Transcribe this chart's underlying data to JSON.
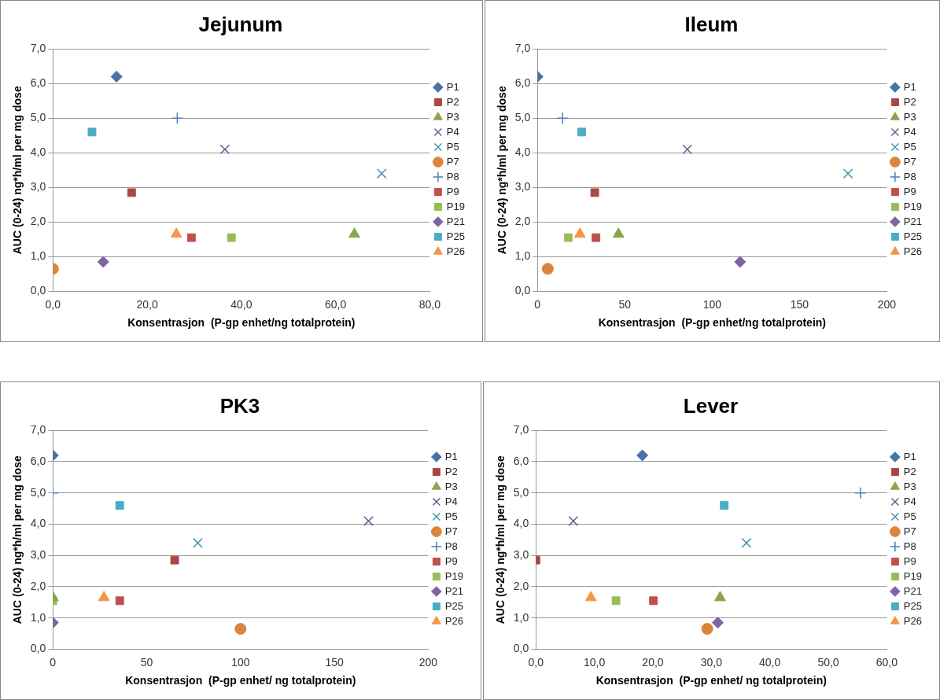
{
  "chart_data": [
    {
      "type": "scatter",
      "title": "Jejunum",
      "xlabel": "Konsentrasjon  (P-gp enhet/ng totalprotein)",
      "ylabel": "AUC (0-24) ng*h/ml per mg dose",
      "xlim": [
        0,
        80
      ],
      "xticks": [
        {
          "value": 0,
          "label": "0,0"
        },
        {
          "value": 20,
          "label": "20,0"
        },
        {
          "value": 40,
          "label": "40,0"
        },
        {
          "value": 60,
          "label": "60,0"
        },
        {
          "value": 80,
          "label": "80,0"
        }
      ],
      "ylim": [
        0,
        7
      ],
      "yticks": [
        {
          "value": 0,
          "label": "0,0"
        },
        {
          "value": 1,
          "label": "1,0"
        },
        {
          "value": 2,
          "label": "2,0"
        },
        {
          "value": 3,
          "label": "3,0"
        },
        {
          "value": 4,
          "label": "4,0"
        },
        {
          "value": 5,
          "label": "5,0"
        },
        {
          "value": 6,
          "label": "6,0"
        },
        {
          "value": 7,
          "label": "7,0"
        }
      ],
      "grid": "y",
      "legend": "right",
      "series": [
        {
          "name": "P1",
          "color": "#4572a7",
          "marker": "diamond",
          "x": [
            13.5
          ],
          "values": [
            6.2
          ]
        },
        {
          "name": "P2",
          "color": "#aa4643",
          "marker": "square",
          "x": [
            16.7
          ],
          "values": [
            2.85
          ]
        },
        {
          "name": "P3",
          "color": "#89a54e",
          "marker": "triangle",
          "x": [
            64
          ],
          "values": [
            1.65
          ]
        },
        {
          "name": "P4",
          "color": "#71588f",
          "marker": "cross",
          "x": [
            36.5
          ],
          "values": [
            4.1
          ]
        },
        {
          "name": "P5",
          "color": "#4198af",
          "marker": "cross",
          "x": [
            69.8
          ],
          "values": [
            3.4
          ]
        },
        {
          "name": "P7",
          "color": "#db843d",
          "marker": "circle",
          "x": [
            0
          ],
          "values": [
            0.65
          ]
        },
        {
          "name": "P8",
          "color": "#4a7ebb",
          "marker": "plus",
          "x": [
            26.4
          ],
          "values": [
            5.0
          ]
        },
        {
          "name": "P9",
          "color": "#c0504d",
          "marker": "square",
          "x": [
            29.4
          ],
          "values": [
            1.55
          ]
        },
        {
          "name": "P19",
          "color": "#9bbb59",
          "marker": "square",
          "x": [
            37.9
          ],
          "values": [
            1.55
          ]
        },
        {
          "name": "P21",
          "color": "#8064a2",
          "marker": "diamond",
          "x": [
            10.7
          ],
          "values": [
            0.85
          ]
        },
        {
          "name": "P25",
          "color": "#4bacc6",
          "marker": "square",
          "x": [
            8.3
          ],
          "values": [
            4.6
          ]
        },
        {
          "name": "P26",
          "color": "#f79646",
          "marker": "triangle",
          "x": [
            26.2
          ],
          "values": [
            1.65
          ]
        }
      ]
    },
    {
      "type": "scatter",
      "title": "Ileum",
      "xlabel": "Konsentrasjon  (P-gp enhet/ng totalprotein)",
      "ylabel": "AUC (0-24) ng*h/ml per mg dose",
      "xlim": [
        0,
        200
      ],
      "xticks": [
        0,
        50,
        100,
        150,
        200
      ],
      "ylim": [
        0,
        7
      ],
      "yticks": [
        {
          "value": 0,
          "label": "0,0"
        },
        {
          "value": 1,
          "label": "1,0"
        },
        {
          "value": 2,
          "label": "2,0"
        },
        {
          "value": 3,
          "label": "3,0"
        },
        {
          "value": 4,
          "label": "4,0"
        },
        {
          "value": 5,
          "label": "5,0"
        },
        {
          "value": 6,
          "label": "6,0"
        },
        {
          "value": 7,
          "label": "7,0"
        }
      ],
      "grid": "y",
      "legend": "right",
      "series": [
        {
          "name": "P1",
          "color": "#4572a7",
          "marker": "diamond",
          "x": [
            0
          ],
          "values": [
            6.2
          ]
        },
        {
          "name": "P2",
          "color": "#aa4643",
          "marker": "square",
          "x": [
            32.8
          ],
          "values": [
            2.85
          ]
        },
        {
          "name": "P3",
          "color": "#89a54e",
          "marker": "triangle",
          "x": [
            46.4
          ],
          "values": [
            1.65
          ]
        },
        {
          "name": "P4",
          "color": "#71588f",
          "marker": "cross",
          "x": [
            85.8
          ],
          "values": [
            4.1
          ]
        },
        {
          "name": "P5",
          "color": "#4198af",
          "marker": "cross",
          "x": [
            177.8
          ],
          "values": [
            3.4
          ]
        },
        {
          "name": "P7",
          "color": "#db843d",
          "marker": "circle",
          "x": [
            5.9
          ],
          "values": [
            0.65
          ]
        },
        {
          "name": "P8",
          "color": "#4a7ebb",
          "marker": "plus",
          "x": [
            14.4
          ],
          "values": [
            5.0
          ]
        },
        {
          "name": "P9",
          "color": "#c0504d",
          "marker": "square",
          "x": [
            33.5
          ],
          "values": [
            1.55
          ]
        },
        {
          "name": "P19",
          "color": "#9bbb59",
          "marker": "square",
          "x": [
            17.6
          ],
          "values": [
            1.55
          ]
        },
        {
          "name": "P21",
          "color": "#8064a2",
          "marker": "diamond",
          "x": [
            116
          ],
          "values": [
            0.85
          ]
        },
        {
          "name": "P25",
          "color": "#4bacc6",
          "marker": "square",
          "x": [
            25.3
          ],
          "values": [
            4.6
          ]
        },
        {
          "name": "P26",
          "color": "#f79646",
          "marker": "triangle",
          "x": [
            24.3
          ],
          "values": [
            1.65
          ]
        }
      ]
    },
    {
      "type": "scatter",
      "title": "PK3",
      "xlabel": "Konsentrasjon  (P-gp enhet/ ng totalprotein)",
      "ylabel": "AUC (0-24) ng*h/ml per mg dose",
      "xlim": [
        0,
        200
      ],
      "xticks": [
        0,
        50,
        100,
        150,
        200
      ],
      "ylim": [
        0,
        7
      ],
      "yticks": [
        {
          "value": 0,
          "label": "0,0"
        },
        {
          "value": 1,
          "label": "1,0"
        },
        {
          "value": 2,
          "label": "2,0"
        },
        {
          "value": 3,
          "label": "3,0"
        },
        {
          "value": 4,
          "label": "4,0"
        },
        {
          "value": 5,
          "label": "5,0"
        },
        {
          "value": 6,
          "label": "6,0"
        },
        {
          "value": 7,
          "label": "7,0"
        }
      ],
      "grid": "y",
      "legend": "right",
      "series": [
        {
          "name": "P1",
          "color": "#4572a7",
          "marker": "diamond",
          "x": [
            0
          ],
          "values": [
            6.2
          ]
        },
        {
          "name": "P2",
          "color": "#aa4643",
          "marker": "square",
          "x": [
            64.9
          ],
          "values": [
            2.85
          ]
        },
        {
          "name": "P3",
          "color": "#89a54e",
          "marker": "triangle",
          "x": [
            0
          ],
          "values": [
            1.65
          ]
        },
        {
          "name": "P4",
          "color": "#71588f",
          "marker": "cross",
          "x": [
            168.2
          ],
          "values": [
            4.1
          ]
        },
        {
          "name": "P5",
          "color": "#4198af",
          "marker": "cross",
          "x": [
            77.2
          ],
          "values": [
            3.4
          ]
        },
        {
          "name": "P7",
          "color": "#db843d",
          "marker": "circle",
          "x": [
            100
          ],
          "values": [
            0.65
          ]
        },
        {
          "name": "P8",
          "color": "#4a7ebb",
          "marker": "plus",
          "x": [
            0
          ],
          "values": [
            5.0
          ]
        },
        {
          "name": "P9",
          "color": "#c0504d",
          "marker": "square",
          "x": [
            35.6
          ],
          "values": [
            1.55
          ]
        },
        {
          "name": "P19",
          "color": "#9bbb59",
          "marker": "square",
          "x": [
            0
          ],
          "values": [
            1.55
          ]
        },
        {
          "name": "P21",
          "color": "#8064a2",
          "marker": "diamond",
          "x": [
            0
          ],
          "values": [
            0.85
          ]
        },
        {
          "name": "P25",
          "color": "#4bacc6",
          "marker": "square",
          "x": [
            35.6
          ],
          "values": [
            4.6
          ]
        },
        {
          "name": "P26",
          "color": "#f79646",
          "marker": "triangle",
          "x": [
            27.2
          ],
          "values": [
            1.65
          ]
        }
      ]
    },
    {
      "type": "scatter",
      "title": "Lever",
      "xlabel": "Konsentrasjon  (P-gp enhet/ ng totalprotein)",
      "ylabel": "AUC (0-24) ng*h/ml per mg dose",
      "xlim": [
        0,
        60
      ],
      "xticks": [
        {
          "value": 0,
          "label": "0,0"
        },
        {
          "value": 10,
          "label": "10,0"
        },
        {
          "value": 20,
          "label": "20,0"
        },
        {
          "value": 30,
          "label": "30,0"
        },
        {
          "value": 40,
          "label": "40,0"
        },
        {
          "value": 50,
          "label": "50,0"
        },
        {
          "value": 60,
          "label": "60,0"
        }
      ],
      "ylim": [
        0,
        7
      ],
      "yticks": [
        {
          "value": 0,
          "label": "0,0"
        },
        {
          "value": 1,
          "label": "1,0"
        },
        {
          "value": 2,
          "label": "2,0"
        },
        {
          "value": 3,
          "label": "3,0"
        },
        {
          "value": 4,
          "label": "4,0"
        },
        {
          "value": 5,
          "label": "5,0"
        },
        {
          "value": 6,
          "label": "6,0"
        },
        {
          "value": 7,
          "label": "7,0"
        }
      ],
      "grid": "y",
      "legend": "right",
      "series": [
        {
          "name": "P1",
          "color": "#4572a7",
          "marker": "diamond",
          "x": [
            18.2
          ],
          "values": [
            6.2
          ]
        },
        {
          "name": "P2",
          "color": "#aa4643",
          "marker": "square",
          "x": [
            0
          ],
          "values": [
            2.85
          ]
        },
        {
          "name": "P3",
          "color": "#89a54e",
          "marker": "triangle",
          "x": [
            31.5
          ],
          "values": [
            1.65
          ]
        },
        {
          "name": "P4",
          "color": "#71588f",
          "marker": "cross",
          "x": [
            6.4
          ],
          "values": [
            4.1
          ]
        },
        {
          "name": "P5",
          "color": "#4198af",
          "marker": "cross",
          "x": [
            36
          ],
          "values": [
            3.4
          ]
        },
        {
          "name": "P7",
          "color": "#db843d",
          "marker": "circle",
          "x": [
            29.3
          ],
          "values": [
            0.65
          ]
        },
        {
          "name": "P8",
          "color": "#4a7ebb",
          "marker": "plus",
          "x": [
            55.5
          ],
          "values": [
            5.0
          ]
        },
        {
          "name": "P9",
          "color": "#c0504d",
          "marker": "square",
          "x": [
            20.1
          ],
          "values": [
            1.55
          ]
        },
        {
          "name": "P19",
          "color": "#9bbb59",
          "marker": "square",
          "x": [
            13.7
          ],
          "values": [
            1.55
          ]
        },
        {
          "name": "P21",
          "color": "#8064a2",
          "marker": "diamond",
          "x": [
            31.1
          ],
          "values": [
            0.85
          ]
        },
        {
          "name": "P25",
          "color": "#4bacc6",
          "marker": "square",
          "x": [
            32.2
          ],
          "values": [
            4.6
          ]
        },
        {
          "name": "P26",
          "color": "#f79646",
          "marker": "triangle",
          "x": [
            9.4
          ],
          "values": [
            1.65
          ]
        }
      ]
    }
  ]
}
